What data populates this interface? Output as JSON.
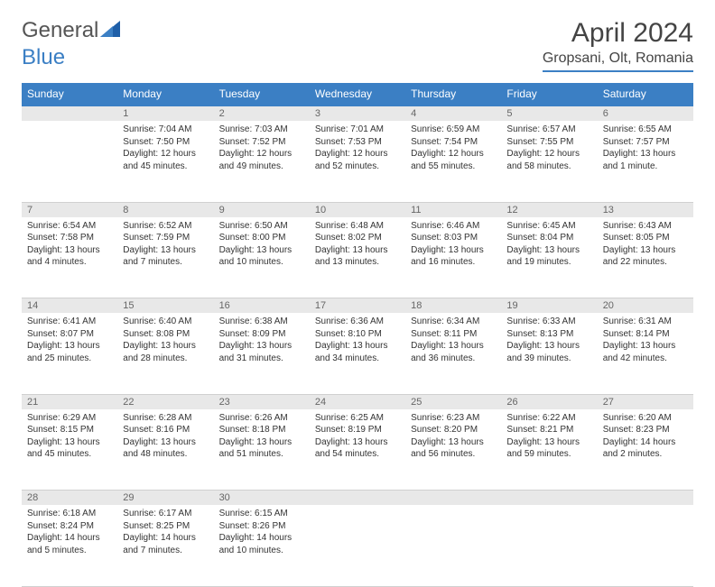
{
  "logo": {
    "text1": "General",
    "text2": "Blue",
    "color1": "#6a6a6a",
    "color2": "#3b7fc4"
  },
  "title": "April 2024",
  "location": "Gropsani, Olt, Romania",
  "colors": {
    "header_bg": "#3b7fc4",
    "header_fg": "#ffffff",
    "daynum_bg": "#e8e8e8",
    "daynum_fg": "#666666",
    "text": "#333333",
    "rule": "#3b7fc4"
  },
  "typography": {
    "body_fontsize": 10,
    "header_fontsize": 12,
    "title_fontsize": 30
  },
  "weekdays": [
    "Sunday",
    "Monday",
    "Tuesday",
    "Wednesday",
    "Thursday",
    "Friday",
    "Saturday"
  ],
  "weeks": [
    [
      null,
      {
        "n": "1",
        "sr": "Sunrise: 7:04 AM",
        "ss": "Sunset: 7:50 PM",
        "d1": "Daylight: 12 hours",
        "d2": "and 45 minutes."
      },
      {
        "n": "2",
        "sr": "Sunrise: 7:03 AM",
        "ss": "Sunset: 7:52 PM",
        "d1": "Daylight: 12 hours",
        "d2": "and 49 minutes."
      },
      {
        "n": "3",
        "sr": "Sunrise: 7:01 AM",
        "ss": "Sunset: 7:53 PM",
        "d1": "Daylight: 12 hours",
        "d2": "and 52 minutes."
      },
      {
        "n": "4",
        "sr": "Sunrise: 6:59 AM",
        "ss": "Sunset: 7:54 PM",
        "d1": "Daylight: 12 hours",
        "d2": "and 55 minutes."
      },
      {
        "n": "5",
        "sr": "Sunrise: 6:57 AM",
        "ss": "Sunset: 7:55 PM",
        "d1": "Daylight: 12 hours",
        "d2": "and 58 minutes."
      },
      {
        "n": "6",
        "sr": "Sunrise: 6:55 AM",
        "ss": "Sunset: 7:57 PM",
        "d1": "Daylight: 13 hours",
        "d2": "and 1 minute."
      }
    ],
    [
      {
        "n": "7",
        "sr": "Sunrise: 6:54 AM",
        "ss": "Sunset: 7:58 PM",
        "d1": "Daylight: 13 hours",
        "d2": "and 4 minutes."
      },
      {
        "n": "8",
        "sr": "Sunrise: 6:52 AM",
        "ss": "Sunset: 7:59 PM",
        "d1": "Daylight: 13 hours",
        "d2": "and 7 minutes."
      },
      {
        "n": "9",
        "sr": "Sunrise: 6:50 AM",
        "ss": "Sunset: 8:00 PM",
        "d1": "Daylight: 13 hours",
        "d2": "and 10 minutes."
      },
      {
        "n": "10",
        "sr": "Sunrise: 6:48 AM",
        "ss": "Sunset: 8:02 PM",
        "d1": "Daylight: 13 hours",
        "d2": "and 13 minutes."
      },
      {
        "n": "11",
        "sr": "Sunrise: 6:46 AM",
        "ss": "Sunset: 8:03 PM",
        "d1": "Daylight: 13 hours",
        "d2": "and 16 minutes."
      },
      {
        "n": "12",
        "sr": "Sunrise: 6:45 AM",
        "ss": "Sunset: 8:04 PM",
        "d1": "Daylight: 13 hours",
        "d2": "and 19 minutes."
      },
      {
        "n": "13",
        "sr": "Sunrise: 6:43 AM",
        "ss": "Sunset: 8:05 PM",
        "d1": "Daylight: 13 hours",
        "d2": "and 22 minutes."
      }
    ],
    [
      {
        "n": "14",
        "sr": "Sunrise: 6:41 AM",
        "ss": "Sunset: 8:07 PM",
        "d1": "Daylight: 13 hours",
        "d2": "and 25 minutes."
      },
      {
        "n": "15",
        "sr": "Sunrise: 6:40 AM",
        "ss": "Sunset: 8:08 PM",
        "d1": "Daylight: 13 hours",
        "d2": "and 28 minutes."
      },
      {
        "n": "16",
        "sr": "Sunrise: 6:38 AM",
        "ss": "Sunset: 8:09 PM",
        "d1": "Daylight: 13 hours",
        "d2": "and 31 minutes."
      },
      {
        "n": "17",
        "sr": "Sunrise: 6:36 AM",
        "ss": "Sunset: 8:10 PM",
        "d1": "Daylight: 13 hours",
        "d2": "and 34 minutes."
      },
      {
        "n": "18",
        "sr": "Sunrise: 6:34 AM",
        "ss": "Sunset: 8:11 PM",
        "d1": "Daylight: 13 hours",
        "d2": "and 36 minutes."
      },
      {
        "n": "19",
        "sr": "Sunrise: 6:33 AM",
        "ss": "Sunset: 8:13 PM",
        "d1": "Daylight: 13 hours",
        "d2": "and 39 minutes."
      },
      {
        "n": "20",
        "sr": "Sunrise: 6:31 AM",
        "ss": "Sunset: 8:14 PM",
        "d1": "Daylight: 13 hours",
        "d2": "and 42 minutes."
      }
    ],
    [
      {
        "n": "21",
        "sr": "Sunrise: 6:29 AM",
        "ss": "Sunset: 8:15 PM",
        "d1": "Daylight: 13 hours",
        "d2": "and 45 minutes."
      },
      {
        "n": "22",
        "sr": "Sunrise: 6:28 AM",
        "ss": "Sunset: 8:16 PM",
        "d1": "Daylight: 13 hours",
        "d2": "and 48 minutes."
      },
      {
        "n": "23",
        "sr": "Sunrise: 6:26 AM",
        "ss": "Sunset: 8:18 PM",
        "d1": "Daylight: 13 hours",
        "d2": "and 51 minutes."
      },
      {
        "n": "24",
        "sr": "Sunrise: 6:25 AM",
        "ss": "Sunset: 8:19 PM",
        "d1": "Daylight: 13 hours",
        "d2": "and 54 minutes."
      },
      {
        "n": "25",
        "sr": "Sunrise: 6:23 AM",
        "ss": "Sunset: 8:20 PM",
        "d1": "Daylight: 13 hours",
        "d2": "and 56 minutes."
      },
      {
        "n": "26",
        "sr": "Sunrise: 6:22 AM",
        "ss": "Sunset: 8:21 PM",
        "d1": "Daylight: 13 hours",
        "d2": "and 59 minutes."
      },
      {
        "n": "27",
        "sr": "Sunrise: 6:20 AM",
        "ss": "Sunset: 8:23 PM",
        "d1": "Daylight: 14 hours",
        "d2": "and 2 minutes."
      }
    ],
    [
      {
        "n": "28",
        "sr": "Sunrise: 6:18 AM",
        "ss": "Sunset: 8:24 PM",
        "d1": "Daylight: 14 hours",
        "d2": "and 5 minutes."
      },
      {
        "n": "29",
        "sr": "Sunrise: 6:17 AM",
        "ss": "Sunset: 8:25 PM",
        "d1": "Daylight: 14 hours",
        "d2": "and 7 minutes."
      },
      {
        "n": "30",
        "sr": "Sunrise: 6:15 AM",
        "ss": "Sunset: 8:26 PM",
        "d1": "Daylight: 14 hours",
        "d2": "and 10 minutes."
      },
      null,
      null,
      null,
      null
    ]
  ]
}
